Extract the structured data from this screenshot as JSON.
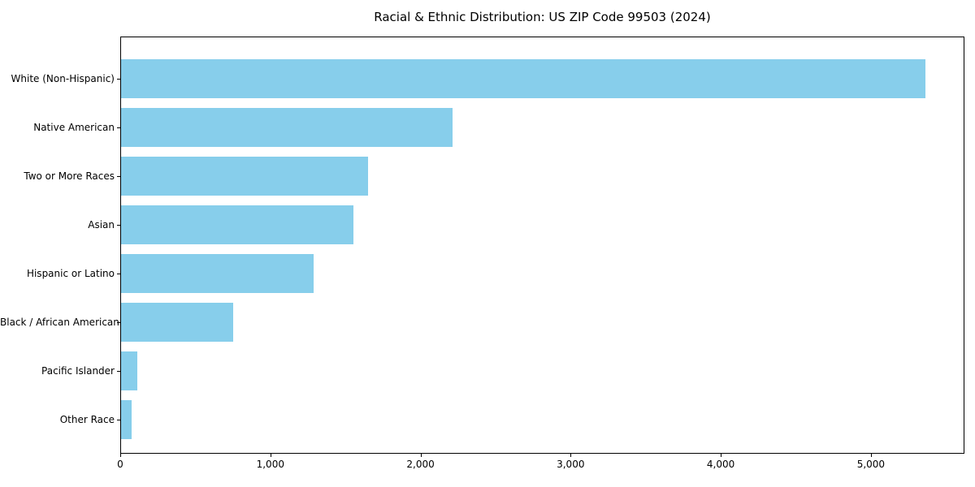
{
  "chart_data": {
    "type": "bar",
    "orientation": "horizontal",
    "title": "Racial & Ethnic Distribution: US ZIP Code 99503 (2024)",
    "categories": [
      "White (Non-Hispanic)",
      "Native American",
      "Two or More Races",
      "Asian",
      "Hispanic or Latino",
      "Black / African American",
      "Pacific Islander",
      "Other Race"
    ],
    "values": [
      5355,
      2210,
      1645,
      1545,
      1280,
      745,
      110,
      72
    ],
    "title_color": "#000000",
    "bar_color": "#87CEEB",
    "spine_color": "#000000",
    "background_color": "#ffffff",
    "xlabel": "",
    "ylabel": "",
    "xlim": [
      0,
      5623
    ],
    "x_ticks": [
      0,
      1000,
      2000,
      3000,
      4000,
      5000
    ],
    "grid": false,
    "legend": null
  }
}
